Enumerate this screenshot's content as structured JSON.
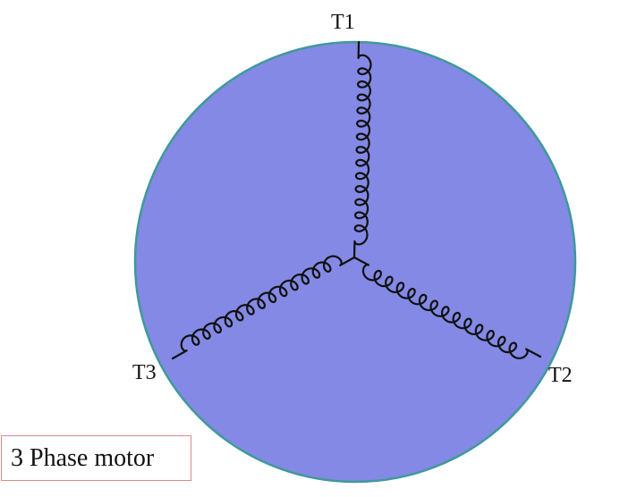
{
  "diagram": {
    "terminals": [
      {
        "id": "T1",
        "label": "T1"
      },
      {
        "id": "T2",
        "label": "T2"
      },
      {
        "id": "T3",
        "label": "T3"
      }
    ],
    "caption": "3 Phase motor",
    "colors": {
      "stator_fill": "#8389e4",
      "stator_stroke": "#3e9a99",
      "winding": "#111111",
      "caption_border": "#d98a8a"
    },
    "coil_turns_per_phase": 14
  }
}
